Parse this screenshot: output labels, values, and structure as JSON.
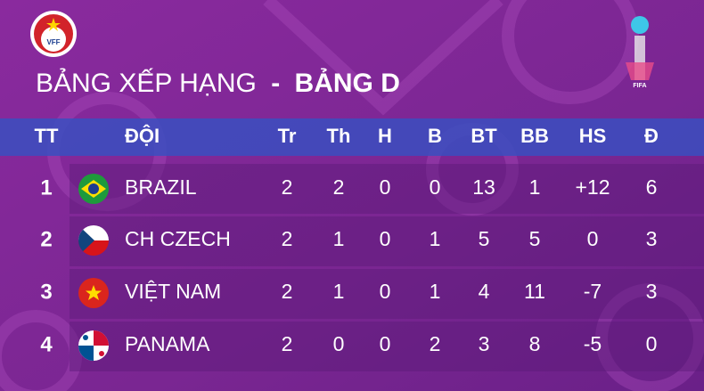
{
  "header": {
    "logo_left": "VFF",
    "title": "BẢNG XẾP HẠNG",
    "title_sep": "-",
    "title_group": "BẢNG D",
    "logo_right": "FIFA"
  },
  "table": {
    "columns": [
      "TT",
      "ĐỘI",
      "Tr",
      "Th",
      "H",
      "B",
      "BT",
      "BB",
      "HS",
      "Đ"
    ],
    "rows": [
      [
        1,
        "BRAZIL",
        2,
        2,
        0,
        0,
        13,
        1,
        "+12",
        6
      ],
      [
        2,
        "CH CZECH",
        2,
        1,
        0,
        1,
        5,
        5,
        0,
        3
      ],
      [
        3,
        "VIỆT NAM",
        2,
        1,
        0,
        1,
        4,
        11,
        -7,
        3
      ],
      [
        4,
        "PANAMA",
        2,
        0,
        0,
        2,
        3,
        8,
        -5,
        0
      ]
    ]
  }
}
